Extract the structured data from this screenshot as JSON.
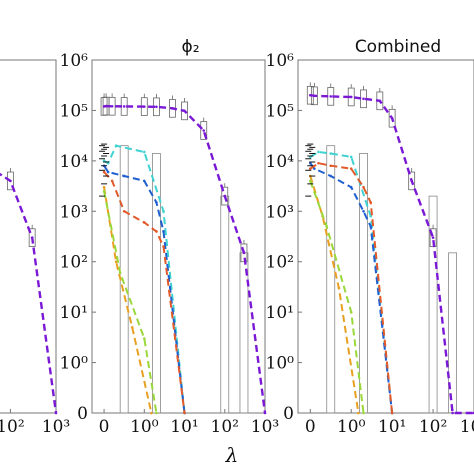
{
  "chart_data": [
    {
      "type": "line",
      "title": "",
      "xscale": "symlog",
      "yscale": "symlog",
      "grid": false,
      "legend": "none",
      "x_ticks": [],
      "x_tick_labels": [
        "10²",
        "10³"
      ],
      "y_tick_labels": [],
      "series": [
        {
          "color": "#7a18d6",
          "x": [
            30,
            100,
            300,
            1000
          ],
          "y": [
            8000,
            4000,
            300,
            0
          ]
        }
      ],
      "note": ""
    },
    {
      "type": "line",
      "title": "ϕ₂",
      "xscale": "symlog",
      "yscale": "symlog",
      "grid": false,
      "legend": "none",
      "xlim": [
        -0.3,
        1000
      ],
      "ylim": [
        0,
        1000000
      ],
      "x_tick_labels": [
        "0",
        "10⁰",
        "10¹",
        "10²",
        "10³"
      ],
      "y_tick_labels": [
        "0",
        "10⁰",
        "10¹",
        "10²",
        "10³",
        "10⁴",
        "10⁵",
        "10⁶"
      ],
      "series": [
        {
          "color": "#7a18d6",
          "x": [
            0,
            0.05,
            0.2,
            0.5,
            1,
            2,
            5,
            10,
            30,
            100,
            300,
            1000
          ],
          "y": [
            120000,
            122000,
            121000,
            120000,
            119000,
            118000,
            110000,
            98000,
            40000,
            2000,
            150,
            0
          ]
        },
        {
          "color": "#3fd2d2",
          "x": [
            0,
            0.1,
            0.3,
            1,
            3,
            10
          ],
          "y": [
            10000,
            9000,
            20000,
            15000,
            1000,
            0
          ]
        },
        {
          "color": "#1f5fd0",
          "x": [
            0,
            0.1,
            0.5,
            1,
            2,
            3,
            10
          ],
          "y": [
            8000,
            6000,
            5000,
            4000,
            1500,
            400,
            0
          ]
        },
        {
          "color": "#e25a2a",
          "x": [
            0,
            0.2,
            0.5,
            1,
            2,
            3,
            10
          ],
          "y": [
            6000,
            4000,
            1000,
            600,
            400,
            200,
            0
          ]
        },
        {
          "color": "#e8a020",
          "x": [
            0,
            0.3,
            0.7,
            1.5
          ],
          "y": [
            3000,
            100,
            5,
            0
          ]
        },
        {
          "color": "#9ad83a",
          "x": [
            0,
            0.4,
            1,
            2
          ],
          "y": [
            2500,
            60,
            3,
            0
          ]
        }
      ]
    },
    {
      "type": "line",
      "title": "Combined",
      "xscale": "symlog",
      "yscale": "symlog",
      "grid": false,
      "legend": "none",
      "xlim": [
        -0.3,
        1000
      ],
      "ylim": [
        0,
        1000000
      ],
      "x_tick_labels": [
        "0",
        "10⁰",
        "10¹",
        "10²",
        "10³"
      ],
      "y_tick_labels": [
        "0",
        "10⁰",
        "10¹",
        "10²",
        "10³",
        "10⁴",
        "10⁵",
        "10⁶"
      ],
      "series": [
        {
          "color": "#7a18d6",
          "x": [
            0,
            0.1,
            0.5,
            1,
            2,
            5,
            10,
            30,
            100,
            300,
            1000
          ],
          "y": [
            200000,
            195000,
            190000,
            185000,
            170000,
            155000,
            70000,
            4000,
            300,
            0,
            0
          ]
        },
        {
          "color": "#3fd2d2",
          "x": [
            0,
            0.2,
            0.5,
            1,
            3,
            10
          ],
          "y": [
            12000,
            15000,
            14000,
            12000,
            800,
            0
          ]
        },
        {
          "color": "#1f5fd0",
          "x": [
            0,
            0.1,
            0.5,
            1,
            2,
            3,
            10
          ],
          "y": [
            9000,
            7000,
            5000,
            3000,
            1000,
            500,
            0
          ]
        },
        {
          "color": "#e25a2a",
          "x": [
            0,
            0.2,
            0.5,
            1,
            2,
            3,
            10
          ],
          "y": [
            7000,
            9000,
            8000,
            7000,
            3000,
            1500,
            0
          ]
        },
        {
          "color": "#e8a020",
          "x": [
            0,
            0.3,
            0.7,
            1.5
          ],
          "y": [
            5000,
            800,
            30,
            0
          ]
        },
        {
          "color": "#9ad83a",
          "x": [
            0,
            0.4,
            1,
            2
          ],
          "y": [
            4000,
            500,
            10,
            0
          ]
        }
      ]
    }
  ],
  "shared_xlabel": "λ"
}
